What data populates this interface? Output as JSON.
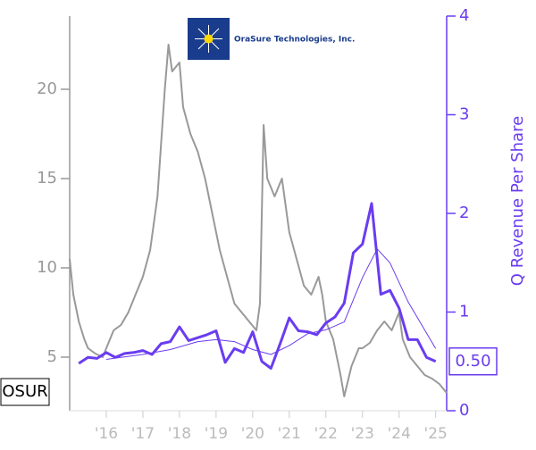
{
  "chart_data": {
    "type": "line",
    "logo_text": "OraSure Technologies, Inc.",
    "ticker": "OSUR",
    "y2label": "Q Revenue Per Share",
    "xlim": [
      2015.0,
      2025.3
    ],
    "xticks": [
      {
        "value": 2016,
        "label": "'16"
      },
      {
        "value": 2017,
        "label": "'17"
      },
      {
        "value": 2018,
        "label": "'18"
      },
      {
        "value": 2019,
        "label": "'19"
      },
      {
        "value": 2020,
        "label": "'20"
      },
      {
        "value": 2021,
        "label": "'21"
      },
      {
        "value": 2022,
        "label": "'22"
      },
      {
        "value": 2023,
        "label": "'23"
      },
      {
        "value": 2024,
        "label": "'24"
      },
      {
        "value": 2025,
        "label": "'25"
      }
    ],
    "ylim": [
      2,
      24.1
    ],
    "yticks": [
      5,
      10,
      15,
      20
    ],
    "y2lim": [
      0,
      4
    ],
    "y2ticks": [
      0,
      1,
      2,
      3,
      4
    ],
    "series": [
      {
        "color": "#999999",
        "width": 2,
        "x": [
          2015.0,
          2015.1,
          2015.25,
          2015.4,
          2015.5,
          2015.7,
          2015.9,
          2016.0,
          2016.2,
          2016.4,
          2016.6,
          2016.8,
          2017.0,
          2017.2,
          2017.4,
          2017.5,
          2017.6,
          2017.7,
          2017.8,
          2018.0,
          2018.1,
          2018.3,
          2018.5,
          2018.7,
          2018.9,
          2019.1,
          2019.3,
          2019.5,
          2019.7,
          2019.9,
          2020.1,
          2020.2,
          2020.3,
          2020.4,
          2020.6,
          2020.8,
          2021.0,
          2021.2,
          2021.4,
          2021.6,
          2021.8,
          2021.9,
          2022.0,
          2022.2,
          2022.4,
          2022.5,
          2022.7,
          2022.9,
          2023.0,
          2023.2,
          2023.4,
          2023.6,
          2023.8,
          2024.0,
          2024.1,
          2024.3,
          2024.5,
          2024.7,
          2024.9,
          2025.1,
          2025.3
        ],
        "values": [
          10.5,
          8.5,
          7,
          6,
          5.5,
          5.2,
          5.0,
          5.5,
          6.5,
          6.8,
          7.5,
          8.5,
          9.5,
          11,
          14,
          17,
          20,
          22.5,
          21,
          21.5,
          19,
          17.5,
          16.5,
          15,
          13,
          11,
          9.5,
          8,
          7.5,
          7.0,
          6.5,
          8,
          18,
          15,
          14,
          15,
          12,
          10.5,
          9,
          8.5,
          9.5,
          8.5,
          7,
          6,
          4,
          2.8,
          4.5,
          5.5,
          5.5,
          5.8,
          6.5,
          7,
          6.5,
          7.5,
          6,
          5,
          4.5,
          4,
          3.8,
          3.5,
          3.0
        ]
      },
      {
        "color": "#6a3cf0",
        "width": 1,
        "axis": "y2",
        "x": [
          2016.0,
          2017.0,
          2017.75,
          2018.5,
          2019.0,
          2019.5,
          2020.0,
          2020.5,
          2021.0,
          2021.5,
          2022.0,
          2022.5,
          2023.0,
          2023.4,
          2023.75,
          2024.25,
          2025.0
        ],
        "values": [
          0.52,
          0.57,
          0.62,
          0.7,
          0.72,
          0.7,
          0.62,
          0.57,
          0.66,
          0.78,
          0.82,
          0.9,
          1.35,
          1.64,
          1.5,
          1.1,
          0.63
        ]
      },
      {
        "color": "#6a3cf0",
        "width": 3,
        "axis": "y2",
        "last_label": "0.50",
        "x": [
          2015.25,
          2015.5,
          2015.75,
          2016.0,
          2016.25,
          2016.5,
          2016.75,
          2017.0,
          2017.25,
          2017.5,
          2017.75,
          2018.0,
          2018.25,
          2018.5,
          2018.75,
          2019.0,
          2019.25,
          2019.5,
          2019.75,
          2020.0,
          2020.25,
          2020.5,
          2020.75,
          2021.0,
          2021.25,
          2021.5,
          2021.75,
          2022.0,
          2022.25,
          2022.5,
          2022.75,
          2023.0,
          2023.25,
          2023.5,
          2023.75,
          2024.0,
          2024.25,
          2024.5,
          2024.75,
          2025.0
        ],
        "values": [
          0.48,
          0.54,
          0.53,
          0.59,
          0.54,
          0.58,
          0.59,
          0.61,
          0.57,
          0.68,
          0.7,
          0.85,
          0.71,
          0.74,
          0.77,
          0.81,
          0.49,
          0.63,
          0.59,
          0.8,
          0.5,
          0.43,
          0.68,
          0.94,
          0.81,
          0.8,
          0.77,
          0.89,
          0.95,
          1.09,
          1.6,
          1.69,
          2.1,
          1.18,
          1.22,
          1.04,
          0.72,
          0.72,
          0.54,
          0.5
        ]
      }
    ]
  }
}
